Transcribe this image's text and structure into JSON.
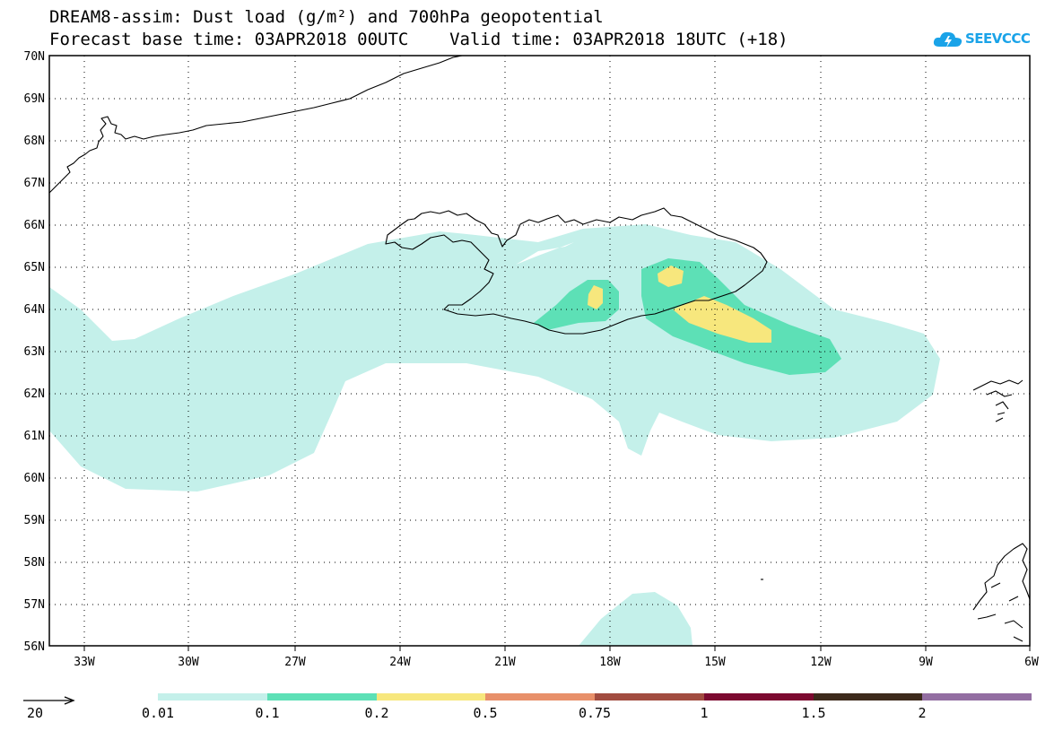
{
  "header": {
    "title_line1": "DREAM8-assim: Dust load (g/m²) and 700hPa geopotential",
    "title_line2": "Forecast base time: 03APR2018 00UTC    Valid time: 03APR2018 18UTC (+18)"
  },
  "logo": {
    "text": "SEEVCCC",
    "icon": "cloud-lightning-icon",
    "color": "#1aa3e8"
  },
  "map": {
    "lat_labels": [
      "70N",
      "69N",
      "68N",
      "67N",
      "66N",
      "65N",
      "64N",
      "63N",
      "62N",
      "61N",
      "60N",
      "59N",
      "58N",
      "57N",
      "56N"
    ],
    "lon_labels": [
      "33W",
      "30W",
      "27W",
      "24W",
      "21W",
      "18W",
      "15W",
      "12W",
      "9W",
      "6W"
    ],
    "lat_range": [
      56,
      70
    ],
    "lon_range": [
      -34.5,
      -6
    ],
    "grid": "dotted"
  },
  "legend": {
    "vector_reference": "20",
    "levels": [
      "0.01",
      "0.1",
      "0.2",
      "0.5",
      "0.75",
      "1",
      "1.5",
      "2"
    ],
    "colors": [
      "#c4f0ea",
      "#5de0b6",
      "#f7e77d",
      "#e8906a",
      "#a24c40",
      "#7c0a30",
      "#3d2a1c",
      "#936ea2"
    ]
  }
}
